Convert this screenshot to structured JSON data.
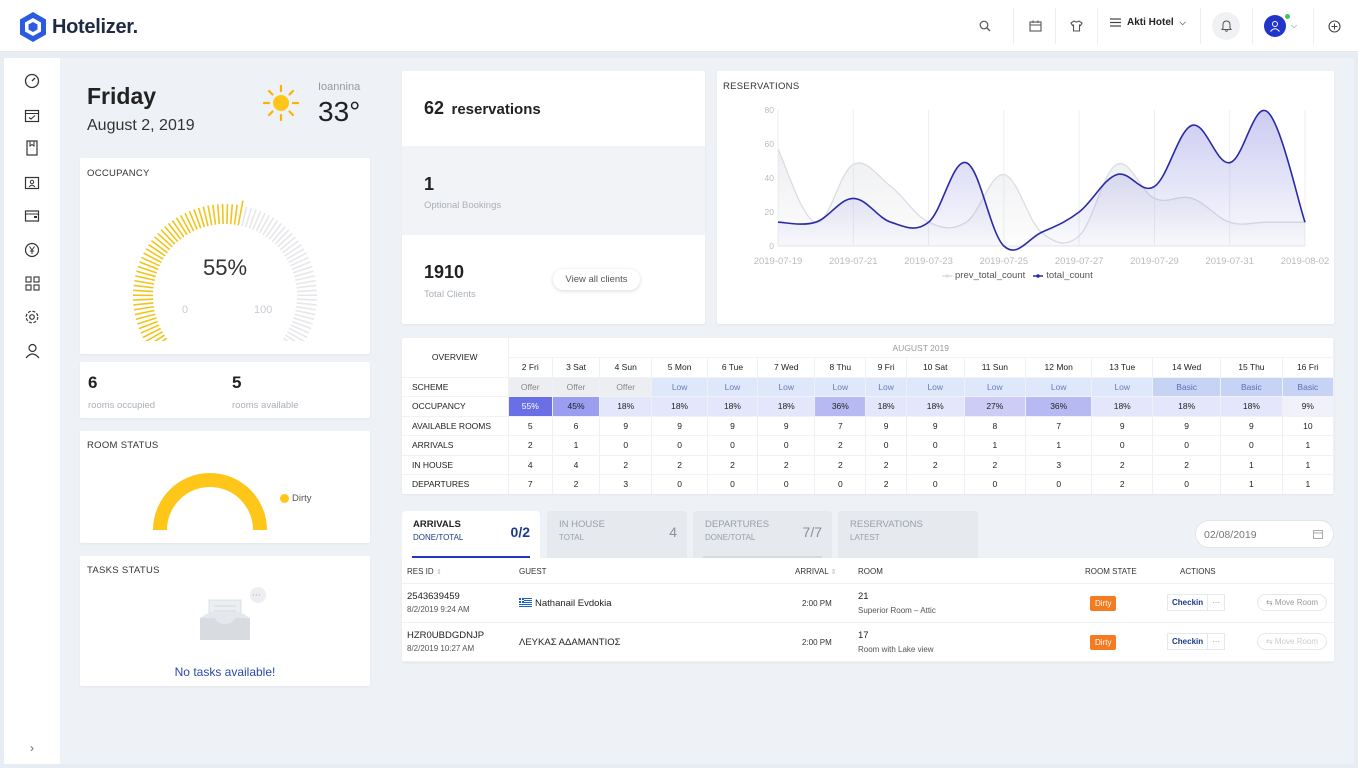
{
  "app": {
    "name": "Hotelizer.",
    "hotel": "Akti Hotel"
  },
  "date": {
    "day": "Friday",
    "full": "August 2, 2019"
  },
  "weather": {
    "city": "Ioannina",
    "temp": "33°"
  },
  "occupancy": {
    "title": "OCCUPANCY",
    "value": "55%",
    "percent": 55,
    "min": "0",
    "max": "100"
  },
  "rooms": {
    "occupied": "6",
    "occupied_label": "rooms occupied",
    "available": "5",
    "available_label": "rooms available"
  },
  "room_status": {
    "title": "ROOM STATUS",
    "legend": "Dirty"
  },
  "tasks": {
    "title": "TASKS STATUS",
    "empty": "No tasks available!"
  },
  "stats": {
    "reservations_count": "62",
    "reservations_label": "reservations",
    "optional_count": "1",
    "optional_label": "Optional Bookings",
    "clients_count": "1910",
    "clients_label": "Total Clients",
    "view_clients": "View all clients"
  },
  "chart_data": {
    "type": "line",
    "title": "RESERVATIONS",
    "x": [
      "2019-07-19",
      "2019-07-20",
      "2019-07-21",
      "2019-07-22",
      "2019-07-23",
      "2019-07-24",
      "2019-07-25",
      "2019-07-26",
      "2019-07-27",
      "2019-07-28",
      "2019-07-29",
      "2019-07-30",
      "2019-07-31",
      "2019-08-01",
      "2019-08-02"
    ],
    "xticks": [
      "2019-07-19",
      "2019-07-21",
      "2019-07-23",
      "2019-07-25",
      "2019-07-27",
      "2019-07-29",
      "2019-07-31",
      "2019-08-02"
    ],
    "yticks": [
      "80",
      "60",
      "40",
      "20",
      "0"
    ],
    "ylim": [
      0,
      80
    ],
    "series": [
      {
        "name": "prev_total_count",
        "color": "#dcdde2",
        "values": [
          57,
          14,
          48,
          35,
          14,
          14,
          42,
          8,
          6,
          48,
          28,
          28,
          14,
          14,
          14
        ]
      },
      {
        "name": "total_count",
        "color": "#2a2aa8",
        "values": [
          14,
          14,
          28,
          14,
          14,
          49,
          0,
          8,
          20,
          42,
          35,
          71,
          49,
          79,
          14
        ]
      }
    ],
    "legend": "bottom"
  },
  "overview": {
    "label": "OVERVIEW",
    "month": "AUGUST 2019",
    "days": [
      "2 Fri",
      "3 Sat",
      "4 Sun",
      "5 Mon",
      "6 Tue",
      "7 Wed",
      "8 Thu",
      "9 Fri",
      "10 Sat",
      "11 Sun",
      "12 Mon",
      "13 Tue",
      "14 Wed",
      "15 Thu",
      "16 Fri"
    ],
    "scheme_label": "SCHEME",
    "scheme": [
      "Offer",
      "Offer",
      "Offer",
      "Low",
      "Low",
      "Low",
      "Low",
      "Low",
      "Low",
      "Low",
      "Low",
      "Low",
      "Basic",
      "Basic",
      "Basic"
    ],
    "occupancy_label": "OCCUPANCY",
    "occupancy": [
      "55%",
      "45%",
      "18%",
      "18%",
      "18%",
      "18%",
      "36%",
      "18%",
      "18%",
      "27%",
      "36%",
      "18%",
      "18%",
      "18%",
      "9%"
    ],
    "occupancy_level": [
      55,
      45,
      18,
      18,
      18,
      18,
      36,
      18,
      18,
      27,
      36,
      18,
      18,
      18,
      9
    ],
    "available_label": "AVAILABLE ROOMS",
    "available": [
      "5",
      "6",
      "9",
      "9",
      "9",
      "9",
      "7",
      "9",
      "9",
      "8",
      "7",
      "9",
      "9",
      "9",
      "10"
    ],
    "arrivals_label": "ARRIVALS",
    "arrivals": [
      "2",
      "1",
      "0",
      "0",
      "0",
      "0",
      "2",
      "0",
      "0",
      "1",
      "1",
      "0",
      "0",
      "0",
      "1"
    ],
    "inhouse_label": "IN HOUSE",
    "inhouse": [
      "4",
      "4",
      "2",
      "2",
      "2",
      "2",
      "2",
      "2",
      "2",
      "2",
      "3",
      "2",
      "2",
      "1",
      "1"
    ],
    "departures_label": "DEPARTURES",
    "departures": [
      "7",
      "2",
      "3",
      "0",
      "0",
      "0",
      "0",
      "2",
      "0",
      "0",
      "0",
      "2",
      "0",
      "1",
      "1"
    ]
  },
  "tabs": [
    {
      "title": "ARRIVALS",
      "sub": "DONE/TOTAL",
      "value": "0/2"
    },
    {
      "title": "IN HOUSE",
      "sub": "TOTAL",
      "value": "4"
    },
    {
      "title": "DEPARTURES",
      "sub": "DONE/TOTAL",
      "value": "7/7"
    },
    {
      "title": "RESERVATIONS",
      "sub": "LATEST",
      "value": ""
    }
  ],
  "date_picker": "02/08/2019",
  "arrivals_table": {
    "headers": {
      "resid": "RES ID",
      "guest": "GUEST",
      "arrival": "ARRIVAL",
      "room": "ROOM",
      "state": "ROOM STATE",
      "actions": "ACTIONS"
    },
    "rows": [
      {
        "resid": "2543639459",
        "date": "8/2/2019 9:24 AM",
        "guest": "Nathanail Evdokia",
        "arrival": "2:00 PM",
        "room": "21",
        "room_type": "Superior Room – Attic",
        "state": "Dirty",
        "checkin": "Checkin",
        "more": "···",
        "move": "Move Room"
      },
      {
        "resid": "HZR0UBDGDNJP",
        "date": "8/2/2019 10:27 AM",
        "guest": "ΛΕΥΚΑΣ ΑΔΑΜΑΝΤΙΟΣ",
        "arrival": "2:00 PM",
        "room": "17",
        "room_type": "Room with Lake view",
        "state": "Dirty",
        "checkin": "Checkin",
        "more": "···",
        "move": "Move Room"
      }
    ]
  }
}
